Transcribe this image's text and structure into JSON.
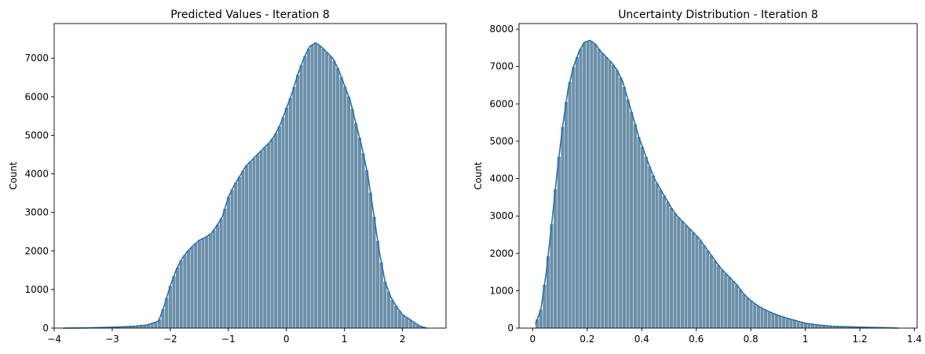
{
  "chart_data": [
    {
      "type": "histogram",
      "title": "Predicted Values - Iteration 8",
      "xlabel": "",
      "ylabel": "Count",
      "xlim": [
        -4.0,
        2.75
      ],
      "ylim": [
        0,
        7900
      ],
      "xticks": [
        -4,
        -3,
        -2,
        -1,
        0,
        1,
        2
      ],
      "yticks": [
        0,
        1000,
        2000,
        3000,
        4000,
        5000,
        6000,
        7000
      ],
      "bar_color": "#6b8fa8",
      "kde_color": "#2a70ac",
      "kde": [
        [
          -3.85,
          0
        ],
        [
          -3.5,
          3
        ],
        [
          -3.2,
          15
        ],
        [
          -3.0,
          25
        ],
        [
          -2.8,
          35
        ],
        [
          -2.6,
          50
        ],
        [
          -2.4,
          80
        ],
        [
          -2.2,
          180
        ],
        [
          -2.1,
          600
        ],
        [
          -2.0,
          1100
        ],
        [
          -1.9,
          1500
        ],
        [
          -1.8,
          1800
        ],
        [
          -1.7,
          2000
        ],
        [
          -1.6,
          2150
        ],
        [
          -1.5,
          2280
        ],
        [
          -1.4,
          2350
        ],
        [
          -1.3,
          2450
        ],
        [
          -1.2,
          2650
        ],
        [
          -1.1,
          2900
        ],
        [
          -1.0,
          3400
        ],
        [
          -0.9,
          3700
        ],
        [
          -0.8,
          3950
        ],
        [
          -0.7,
          4200
        ],
        [
          -0.6,
          4350
        ],
        [
          -0.5,
          4500
        ],
        [
          -0.4,
          4650
        ],
        [
          -0.3,
          4800
        ],
        [
          -0.2,
          5000
        ],
        [
          -0.1,
          5300
        ],
        [
          0.0,
          5700
        ],
        [
          0.1,
          6100
        ],
        [
          0.2,
          6600
        ],
        [
          0.3,
          7000
        ],
        [
          0.4,
          7300
        ],
        [
          0.5,
          7400
        ],
        [
          0.6,
          7300
        ],
        [
          0.7,
          7150
        ],
        [
          0.8,
          7000
        ],
        [
          0.9,
          6700
        ],
        [
          1.0,
          6300
        ],
        [
          1.1,
          5900
        ],
        [
          1.2,
          5300
        ],
        [
          1.3,
          4700
        ],
        [
          1.4,
          4000
        ],
        [
          1.5,
          3000
        ],
        [
          1.6,
          2000
        ],
        [
          1.7,
          1200
        ],
        [
          1.8,
          800
        ],
        [
          1.9,
          550
        ],
        [
          2.0,
          350
        ],
        [
          2.1,
          250
        ],
        [
          2.2,
          150
        ],
        [
          2.3,
          50
        ],
        [
          2.42,
          0
        ]
      ]
    },
    {
      "type": "histogram",
      "title": "Uncertainty Distribution - Iteration 8",
      "xlabel": "",
      "ylabel": "Count",
      "xlim": [
        -0.05,
        1.41
      ],
      "ylim": [
        0,
        8150
      ],
      "xticks": [
        0.0,
        0.2,
        0.4,
        0.6,
        0.8,
        1.0,
        1.2,
        1.4
      ],
      "yticks": [
        0,
        1000,
        2000,
        3000,
        4000,
        5000,
        6000,
        7000,
        8000
      ],
      "bar_color": "#6b8fa8",
      "kde_color": "#2a70ac",
      "kde": [
        [
          0.01,
          100
        ],
        [
          0.03,
          500
        ],
        [
          0.05,
          1500
        ],
        [
          0.07,
          2800
        ],
        [
          0.09,
          4200
        ],
        [
          0.11,
          5400
        ],
        [
          0.13,
          6400
        ],
        [
          0.15,
          7000
        ],
        [
          0.17,
          7400
        ],
        [
          0.19,
          7650
        ],
        [
          0.21,
          7700
        ],
        [
          0.23,
          7600
        ],
        [
          0.25,
          7400
        ],
        [
          0.27,
          7250
        ],
        [
          0.29,
          7100
        ],
        [
          0.31,
          6900
        ],
        [
          0.33,
          6600
        ],
        [
          0.35,
          6100
        ],
        [
          0.37,
          5600
        ],
        [
          0.39,
          5100
        ],
        [
          0.41,
          4700
        ],
        [
          0.43,
          4300
        ],
        [
          0.45,
          3950
        ],
        [
          0.47,
          3700
        ],
        [
          0.49,
          3450
        ],
        [
          0.51,
          3200
        ],
        [
          0.53,
          3000
        ],
        [
          0.55,
          2850
        ],
        [
          0.57,
          2700
        ],
        [
          0.59,
          2550
        ],
        [
          0.61,
          2400
        ],
        [
          0.63,
          2200
        ],
        [
          0.65,
          2000
        ],
        [
          0.67,
          1800
        ],
        [
          0.69,
          1600
        ],
        [
          0.71,
          1450
        ],
        [
          0.73,
          1300
        ],
        [
          0.75,
          1150
        ],
        [
          0.77,
          950
        ],
        [
          0.79,
          800
        ],
        [
          0.81,
          680
        ],
        [
          0.83,
          580
        ],
        [
          0.85,
          500
        ],
        [
          0.87,
          430
        ],
        [
          0.89,
          370
        ],
        [
          0.91,
          320
        ],
        [
          0.93,
          270
        ],
        [
          0.95,
          230
        ],
        [
          0.97,
          190
        ],
        [
          0.99,
          150
        ],
        [
          1.01,
          120
        ],
        [
          1.05,
          80
        ],
        [
          1.1,
          50
        ],
        [
          1.2,
          25
        ],
        [
          1.3,
          10
        ],
        [
          1.34,
          0
        ]
      ]
    }
  ]
}
